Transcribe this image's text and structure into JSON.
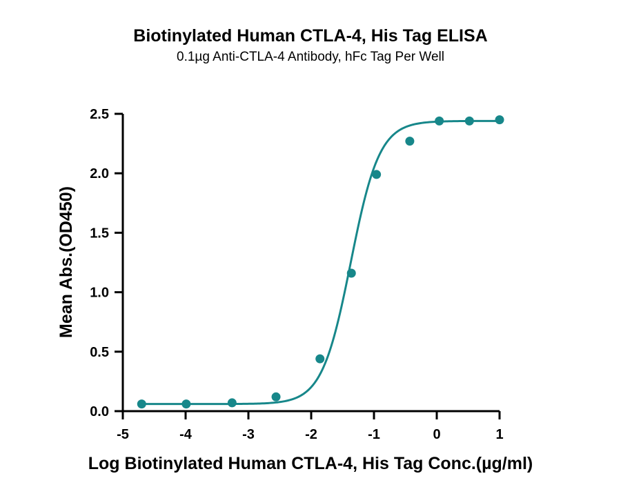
{
  "chart_data": {
    "type": "scatter",
    "title": "Biotinylated Human CTLA-4, His Tag ELISA",
    "subtitle": "0.1µg Anti-CTLA-4 Antibody, hFc Tag Per Well",
    "xlabel": "Log Biotinylated Human CTLA-4, His Tag Conc.(µg/ml)",
    "ylabel": "Mean Abs.(OD450)",
    "xlim": [
      -5,
      1
    ],
    "ylim": [
      0,
      2.5
    ],
    "x_ticks": [
      "-5",
      "-4",
      "-3",
      "-2",
      "-1",
      "0",
      "1"
    ],
    "y_ticks": [
      "0.0",
      "0.5",
      "1.0",
      "1.5",
      "2.0",
      "2.5"
    ],
    "grid": false,
    "color": "#17878a",
    "series": [
      {
        "x": [
          -4.7,
          -3.99,
          -3.26,
          -2.56,
          -1.86,
          -1.36,
          -0.96,
          -0.43,
          0.04,
          0.52,
          1.0
        ],
        "y": [
          0.06,
          0.06,
          0.07,
          0.12,
          0.44,
          1.16,
          1.99,
          2.27,
          2.44,
          2.44,
          2.45
        ],
        "fit": {
          "model": "4PL",
          "bottom": 0.06,
          "top": 2.44,
          "log_ec50": -1.37,
          "hill_slope": 1.9
        }
      }
    ]
  }
}
